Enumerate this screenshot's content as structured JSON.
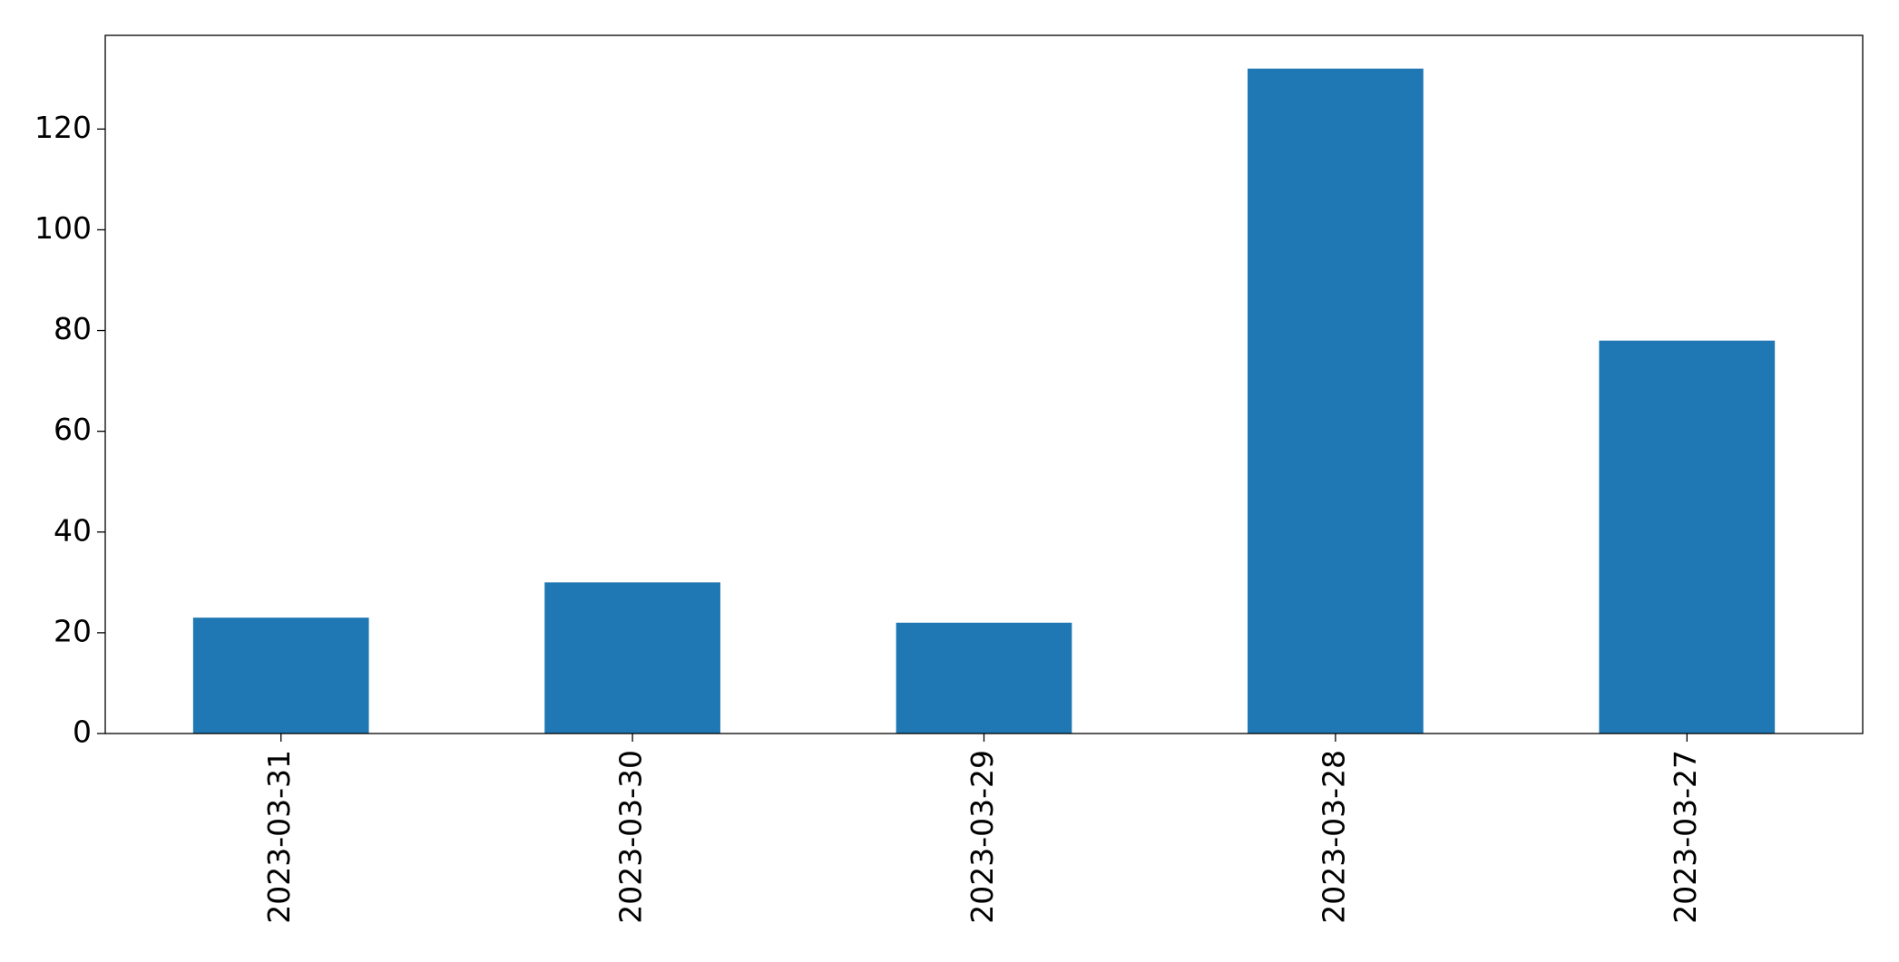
{
  "chart_data": {
    "type": "bar",
    "categories": [
      "2023-03-31",
      "2023-03-30",
      "2023-03-29",
      "2023-03-28",
      "2023-03-27"
    ],
    "values": [
      23,
      30,
      22,
      132,
      78
    ],
    "color": "#1f77b4",
    "ylim": [
      0,
      138.6
    ],
    "yticks": [
      0,
      20,
      40,
      60,
      80,
      100,
      120
    ],
    "grid": false
  }
}
